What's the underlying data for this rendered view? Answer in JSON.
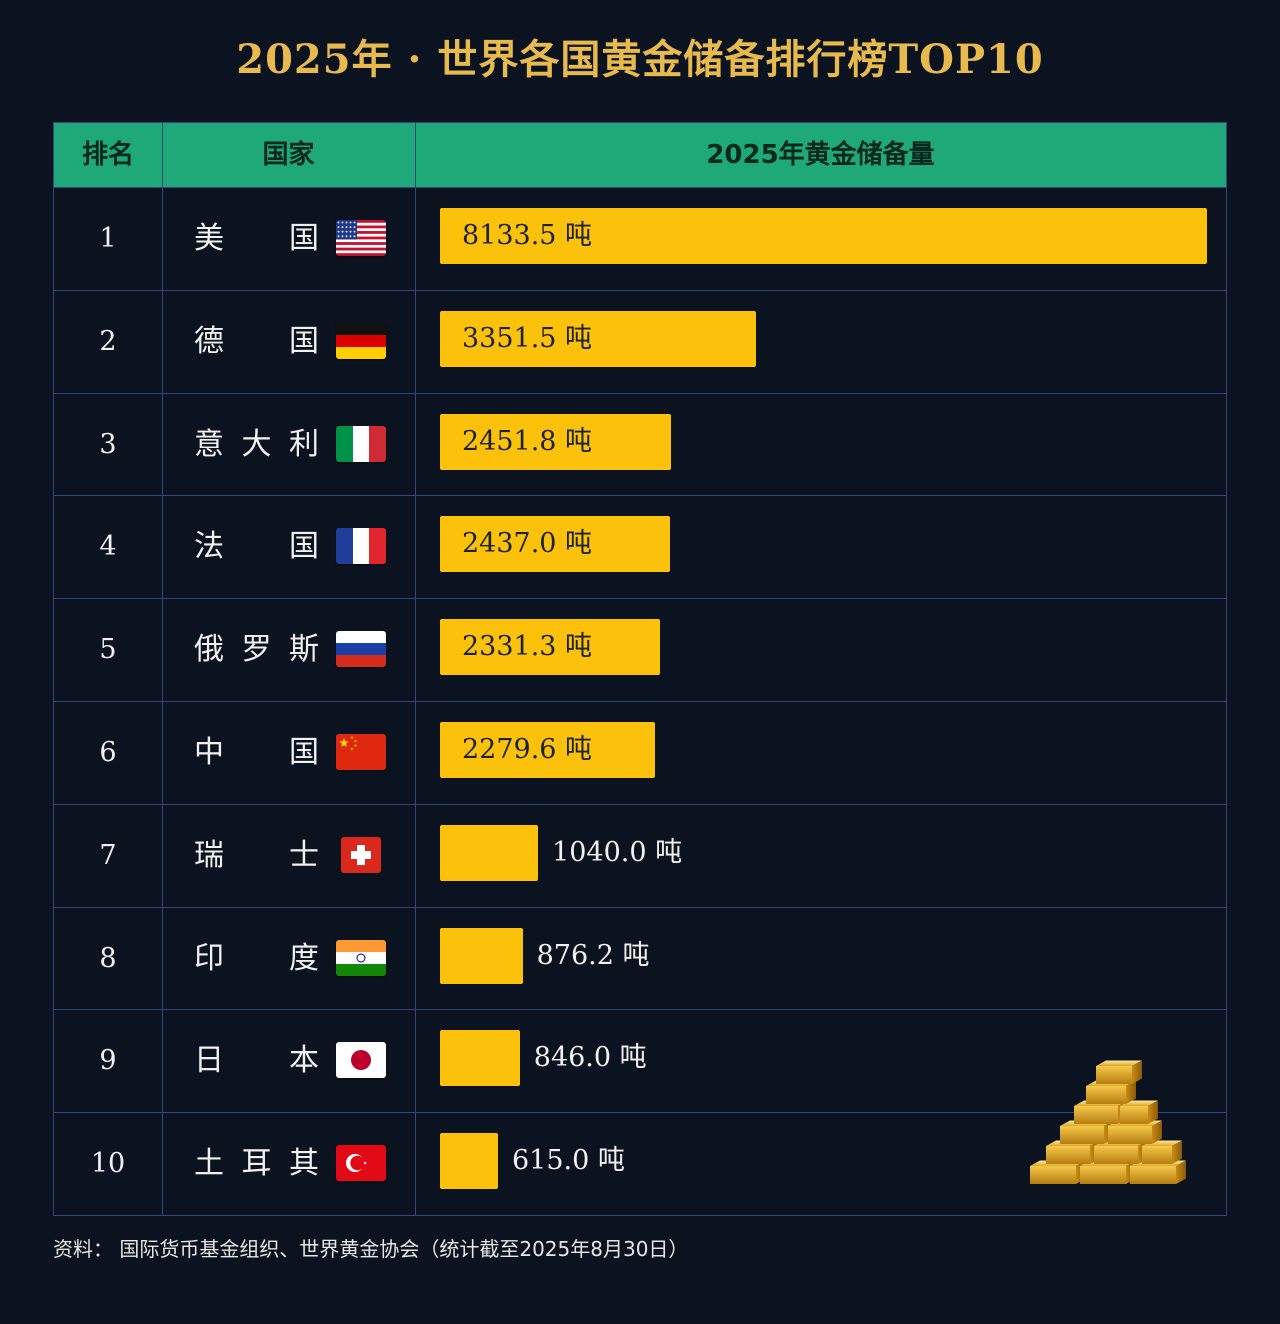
{
  "title": "2025年 · 世界各国黄金储备排行榜TOP10",
  "table": {
    "headers": {
      "rank": "排名",
      "country": "国家",
      "reserve": "2025年黄金储备量"
    }
  },
  "chart_data": {
    "type": "bar",
    "orientation": "horizontal",
    "title": "2025年 · 世界各国黄金储备排行榜TOP10",
    "unit": "吨",
    "ranks": [
      "1",
      "2",
      "3",
      "4",
      "5",
      "6",
      "7",
      "8",
      "9",
      "10"
    ],
    "categories": [
      "美国",
      "德国",
      "意大利",
      "法国",
      "俄罗斯",
      "中国",
      "瑞士",
      "印度",
      "日本",
      "土耳其"
    ],
    "country_chars": [
      [
        "美",
        "国"
      ],
      [
        "德",
        "国"
      ],
      [
        "意",
        "大",
        "利"
      ],
      [
        "法",
        "国"
      ],
      [
        "俄",
        "罗",
        "斯"
      ],
      [
        "中",
        "国"
      ],
      [
        "瑞",
        "士"
      ],
      [
        "印",
        "度"
      ],
      [
        "日",
        "本"
      ],
      [
        "土",
        "耳",
        "其"
      ]
    ],
    "values": [
      8133.5,
      3351.5,
      2451.8,
      2437.0,
      2331.3,
      2279.6,
      1040.0,
      876.2,
      846.0,
      615.0
    ],
    "labels": [
      "8133.5 吨",
      "3351.5 吨",
      "2451.8 吨",
      "2437.0 吨",
      "2331.3 吨",
      "2279.6 吨",
      "1040.0 吨",
      "876.2 吨",
      "846.0 吨",
      "615.0 吨"
    ],
    "flag_icons": [
      "us-flag-icon",
      "germany-flag-icon",
      "italy-flag-icon",
      "france-flag-icon",
      "russia-flag-icon",
      "china-flag-icon",
      "switzerland-flag-icon",
      "india-flag-icon",
      "japan-flag-icon",
      "turkey-flag-icon"
    ],
    "xlim": [
      0,
      8133.5
    ],
    "bar_color": "#fcc10a"
  },
  "source": "资料：  国际货币基金组织、世界黄金协会（统计截至2025年8月30日）",
  "colors": {
    "background": "#0c1320",
    "title": "#e8b94c",
    "header_bg": "#1fa878",
    "grid": "#34447e",
    "bar": "#fcc10a"
  },
  "decorations": {
    "gold_bars": "gold-bars-stack-icon"
  }
}
